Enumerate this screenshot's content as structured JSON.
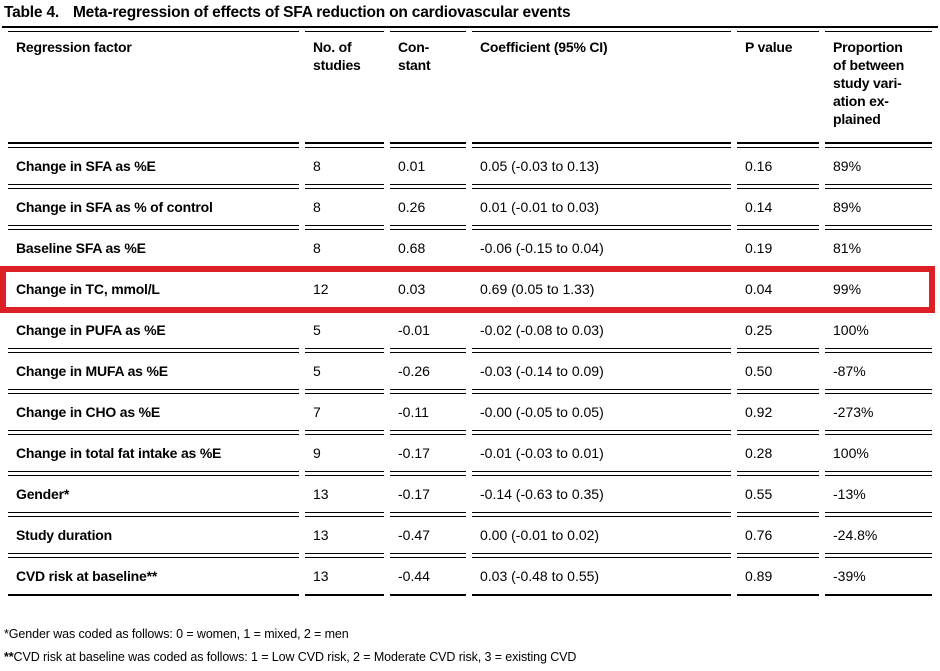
{
  "title": {
    "label": "Table 4.",
    "text": "Meta-regression of effects of SFA reduction on cardiovascular events"
  },
  "table": {
    "columns": [
      {
        "key": "factor",
        "label": "Regression factor"
      },
      {
        "key": "n",
        "label": "No. of\nstudies"
      },
      {
        "key": "constant",
        "label": "Con-\nstant"
      },
      {
        "key": "coefficient",
        "label": "Coefficient (95% CI)"
      },
      {
        "key": "p",
        "label": "P value"
      },
      {
        "key": "proportion",
        "label": "Proportion\nof between\nstudy vari-\nation ex-\nplained"
      }
    ],
    "rows": [
      {
        "factor": "Change in SFA as %E",
        "n": "8",
        "constant": "0.01",
        "coefficient": "0.05 (-0.03 to 0.13)",
        "p": "0.16",
        "proportion": "89%",
        "highlighted": false
      },
      {
        "factor": "Change in SFA as % of control",
        "n": "8",
        "constant": "0.26",
        "coefficient": "0.01 (-0.01 to 0.03)",
        "p": "0.14",
        "proportion": "89%",
        "highlighted": false
      },
      {
        "factor": "Baseline SFA as %E",
        "n": "8",
        "constant": "0.68",
        "coefficient": "-0.06 (-0.15 to 0.04)",
        "p": "0.19",
        "proportion": "81%",
        "highlighted": false
      },
      {
        "factor": "Change in TC, mmol/L",
        "n": "12",
        "constant": "0.03",
        "coefficient": "0.69 (0.05 to 1.33)",
        "p": "0.04",
        "proportion": "99%",
        "highlighted": true
      },
      {
        "factor": "Change in PUFA as %E",
        "n": "5",
        "constant": "-0.01",
        "coefficient": "-0.02 (-0.08 to 0.03)",
        "p": "0.25",
        "proportion": "100%",
        "highlighted": false
      },
      {
        "factor": "Change in MUFA as %E",
        "n": "5",
        "constant": "-0.26",
        "coefficient": "-0.03 (-0.14 to 0.09)",
        "p": "0.50",
        "proportion": "-87%",
        "highlighted": false
      },
      {
        "factor": "Change in CHO as %E",
        "n": "7",
        "constant": "-0.11",
        "coefficient": "-0.00 (-0.05 to 0.05)",
        "p": "0.92",
        "proportion": "-273%",
        "highlighted": false
      },
      {
        "factor": "Change in total fat intake as %E",
        "n": "9",
        "constant": "-0.17",
        "coefficient": "-0.01 (-0.03 to 0.01)",
        "p": "0.28",
        "proportion": "100%",
        "highlighted": false
      },
      {
        "factor": "Gender*",
        "n": "13",
        "constant": "-0.17",
        "coefficient": "-0.14 (-0.63 to 0.35)",
        "p": "0.55",
        "proportion": "-13%",
        "highlighted": false
      },
      {
        "factor": "Study duration",
        "n": "13",
        "constant": "-0.47",
        "coefficient": "0.00 (-0.01 to 0.02)",
        "p": "0.76",
        "proportion": "-24.8%",
        "highlighted": false
      },
      {
        "factor": "CVD risk at baseline**",
        "n": "13",
        "constant": "-0.44",
        "coefficient": "0.03 (-0.48 to 0.55)",
        "p": "0.89",
        "proportion": "-39%",
        "highlighted": false
      }
    ]
  },
  "highlight": {
    "color": "#dc2026",
    "highlighted_factor": "Change in TC, mmol/L"
  },
  "footnotes": [
    {
      "marker": "*",
      "bold_marker": false,
      "text": "Gender was coded as follows: 0 = women, 1 = mixed, 2 = men"
    },
    {
      "marker": "**",
      "bold_marker": true,
      "text": "CVD risk at baseline was coded as follows: 1 = Low CVD risk, 2 = Moderate CVD risk, 3 = existing CVD"
    }
  ]
}
